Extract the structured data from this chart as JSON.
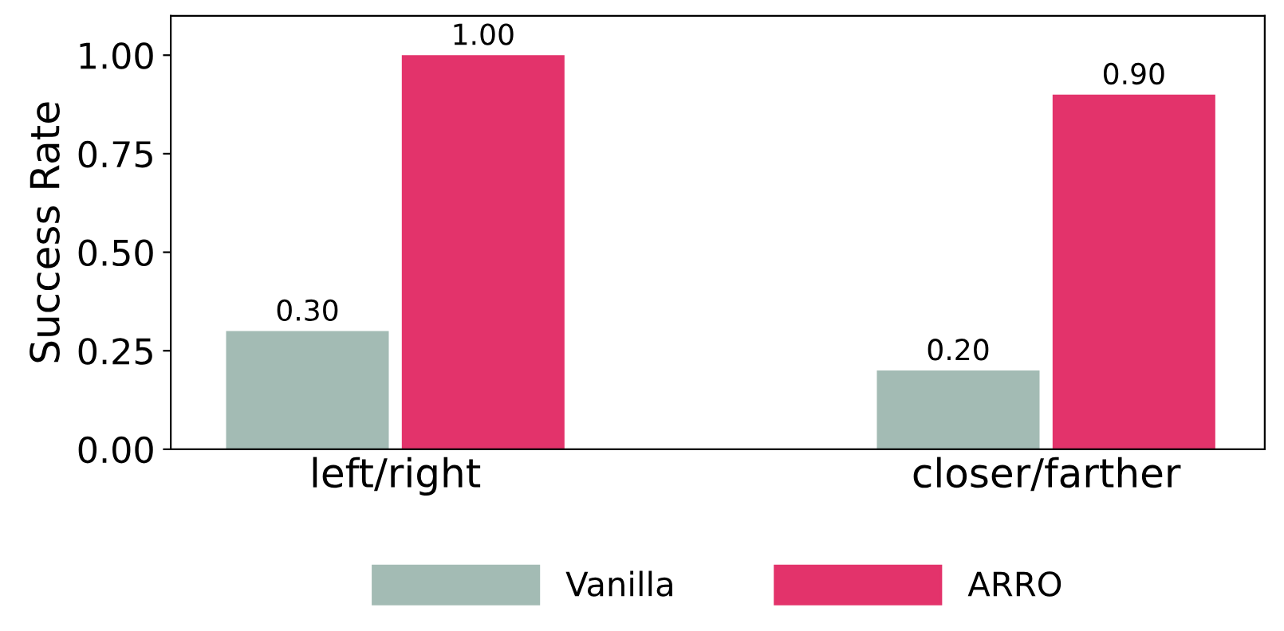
{
  "chart_data": {
    "type": "bar",
    "ylabel": "Success Rate",
    "categories": [
      "left/right",
      "closer/farther"
    ],
    "series": [
      {
        "name": "Vanilla",
        "color": "#a3bbb4",
        "values": [
          0.3,
          0.2
        ],
        "value_labels": [
          "0.30",
          "0.20"
        ]
      },
      {
        "name": "ARRO",
        "color": "#e3336b",
        "values": [
          1.0,
          0.9
        ],
        "value_labels": [
          "1.00",
          "0.90"
        ]
      }
    ],
    "ylim": [
      0,
      1.1
    ],
    "yticks": [
      {
        "value": 0,
        "label": "0.00"
      },
      {
        "value": 0.25,
        "label": "0.25"
      },
      {
        "value": 0.5,
        "label": "0.50"
      },
      {
        "value": 0.75,
        "label": "0.75"
      },
      {
        "value": 1.0,
        "label": "1.00"
      }
    ],
    "grid": false,
    "legend": "bottom"
  }
}
